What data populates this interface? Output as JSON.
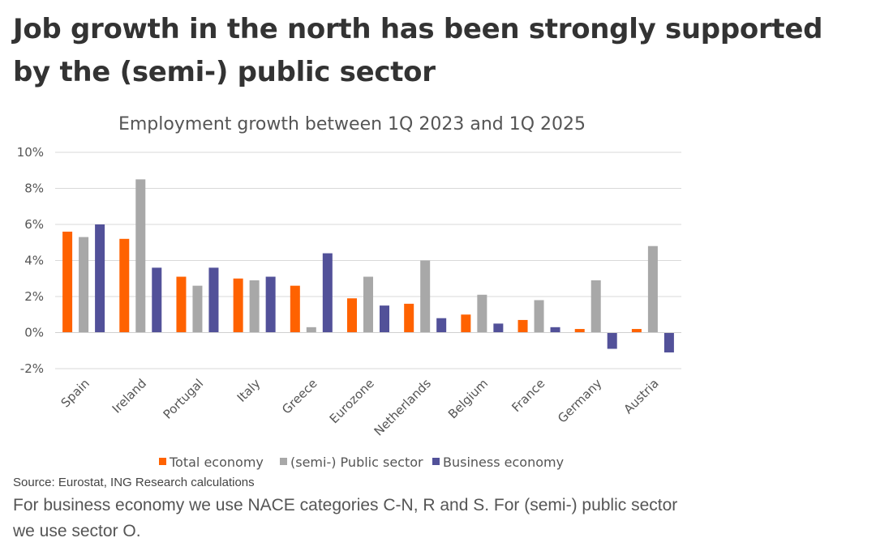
{
  "headline": "Job growth in the north has been strongly supported by the (semi-) public sector",
  "source": "Source: Eurostat, ING Research calculations",
  "footnote": "For business economy we use NACE categories C-N, R and S. For (semi-) public sector we use sector O.",
  "chart_data": {
    "type": "bar",
    "title": "Employment growth between 1Q 2023 and 1Q 2025",
    "xlabel": "",
    "ylabel": "",
    "categories": [
      "Spain",
      "Ireland",
      "Portugal",
      "Italy",
      "Greece",
      "Eurozone",
      "Netherlands",
      "Belgium",
      "France",
      "Germany",
      "Austria"
    ],
    "series": [
      {
        "name": "Total economy",
        "color": "#ff6200",
        "values": [
          5.6,
          5.2,
          3.1,
          3.0,
          2.6,
          1.9,
          1.6,
          1.0,
          0.7,
          0.2,
          0.2
        ]
      },
      {
        "name": "(semi-) Public sector",
        "color": "#a8a8a8",
        "values": [
          5.3,
          8.5,
          2.6,
          2.9,
          0.3,
          3.1,
          4.0,
          2.1,
          1.8,
          2.9,
          4.8
        ]
      },
      {
        "name": "Business economy",
        "color": "#525199",
        "values": [
          6.0,
          3.6,
          3.6,
          3.1,
          4.4,
          1.5,
          0.8,
          0.5,
          0.3,
          -0.9,
          -1.1
        ]
      }
    ],
    "ylim": [
      -2,
      10
    ],
    "yticks": [
      -2,
      0,
      2,
      4,
      6,
      8,
      10
    ],
    "ytick_labels": [
      "-2%",
      "0%",
      "2%",
      "4%",
      "6%",
      "8%",
      "10%"
    ],
    "grid": true,
    "legend": "bottom"
  }
}
